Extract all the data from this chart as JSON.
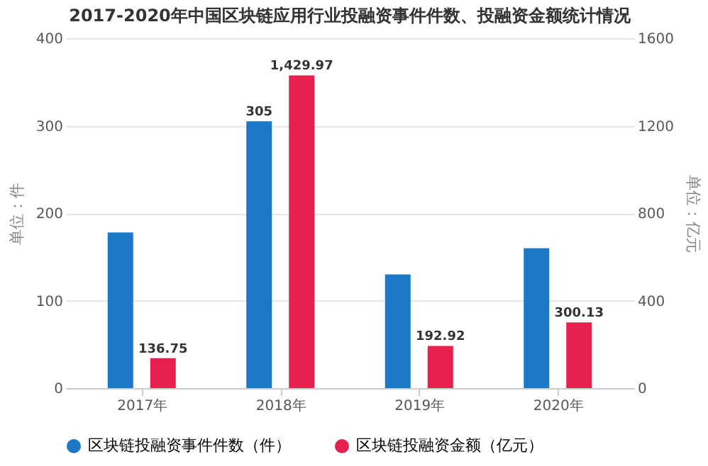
{
  "chart_data": {
    "type": "bar",
    "title": "2017-2020年中国区块链应用行业投融资事件件数、投融资金额统计情况",
    "categories": [
      "2017年",
      "2018年",
      "2019年",
      "2020年"
    ],
    "series": [
      {
        "name": "区块链投融资事件件数（件）",
        "color": "#1a78c6",
        "values": [
          178,
          305,
          130,
          160
        ],
        "value_labels": [
          null,
          "305",
          null,
          null
        ]
      },
      {
        "name": "区块链投融资金额（亿元）",
        "color": "#e8204f",
        "axis": "y2",
        "values": [
          136.75,
          1429.97,
          192.92,
          300.13
        ],
        "value_labels": [
          "136.75",
          "1,429.97",
          "192.92",
          "300.13"
        ]
      }
    ],
    "ylabel": "单位：件",
    "y2label": "单位：亿元",
    "ylim": [
      0,
      400
    ],
    "yticks": [
      0,
      100,
      200,
      300,
      400
    ],
    "y2lim": [
      0,
      1600
    ],
    "y2ticks": [
      0,
      400,
      800,
      1200,
      1600
    ],
    "grid": "y",
    "legend": "bottom",
    "marker": "circle"
  }
}
